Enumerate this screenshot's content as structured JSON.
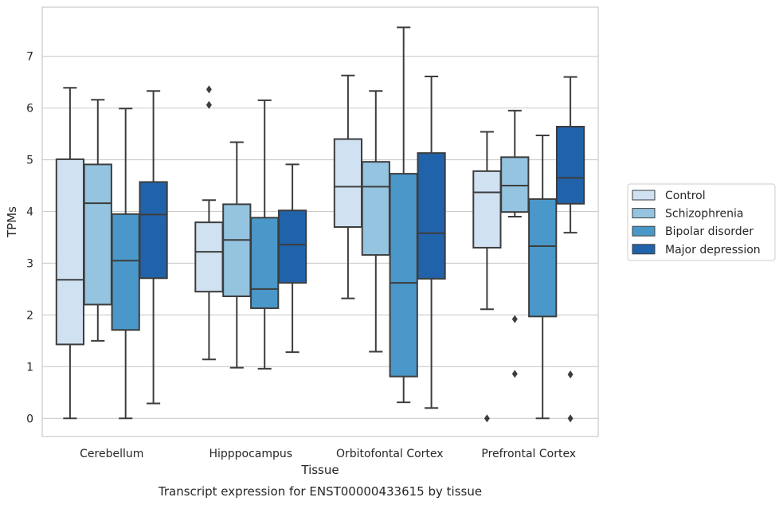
{
  "chart_data": {
    "type": "boxplot",
    "title": "Transcript expression for ENST00000433615 by tissue",
    "xlabel": "Tissue",
    "ylabel": "TPMs",
    "ylim": [
      -0.35,
      7.95
    ],
    "yticks": [
      0,
      1,
      2,
      3,
      4,
      5,
      6,
      7
    ],
    "grid": "horizontal",
    "legend_position": "right",
    "categories": [
      "Cerebellum",
      "Hipppocampus",
      "Orbitofontal Cortex",
      "Prefrontal Cortex"
    ],
    "series": [
      {
        "name": "Control",
        "color": "#d0e1f2",
        "boxes": [
          {
            "min": 0.0,
            "q1": 1.43,
            "median": 2.68,
            "q3": 5.01,
            "max": 6.39,
            "outliers": []
          },
          {
            "min": 1.14,
            "q1": 2.45,
            "median": 3.22,
            "q3": 3.79,
            "max": 4.22,
            "outliers": [
              6.06,
              6.36
            ]
          },
          {
            "min": 2.32,
            "q1": 3.7,
            "median": 4.48,
            "q3": 5.4,
            "max": 6.63,
            "outliers": []
          },
          {
            "min": 2.11,
            "q1": 3.3,
            "median": 4.37,
            "q3": 4.78,
            "max": 5.54,
            "outliers": [
              0.0
            ]
          }
        ]
      },
      {
        "name": "Schizophrenia",
        "color": "#94c4df",
        "boxes": [
          {
            "min": 1.5,
            "q1": 2.2,
            "median": 4.16,
            "q3": 4.91,
            "max": 6.16,
            "outliers": []
          },
          {
            "min": 0.98,
            "q1": 2.36,
            "median": 3.45,
            "q3": 4.14,
            "max": 5.34,
            "outliers": []
          },
          {
            "min": 1.29,
            "q1": 3.16,
            "median": 4.48,
            "q3": 4.96,
            "max": 6.33,
            "outliers": []
          },
          {
            "min": 3.9,
            "q1": 3.99,
            "median": 4.5,
            "q3": 5.05,
            "max": 5.95,
            "outliers": [
              1.92,
              0.86
            ]
          }
        ]
      },
      {
        "name": "Bipolar disorder",
        "color": "#4a98c9",
        "boxes": [
          {
            "min": 0.0,
            "q1": 1.71,
            "median": 3.05,
            "q3": 3.95,
            "max": 5.99,
            "outliers": []
          },
          {
            "min": 0.96,
            "q1": 2.13,
            "median": 2.5,
            "q3": 3.88,
            "max": 6.15,
            "outliers": []
          },
          {
            "min": 0.31,
            "q1": 0.81,
            "median": 2.62,
            "q3": 4.73,
            "max": 7.56,
            "outliers": []
          },
          {
            "min": 0.0,
            "q1": 1.97,
            "median": 3.33,
            "q3": 4.24,
            "max": 5.47,
            "outliers": []
          }
        ]
      },
      {
        "name": "Major depression",
        "color": "#2163aa",
        "boxes": [
          {
            "min": 0.29,
            "q1": 2.71,
            "median": 3.94,
            "q3": 4.57,
            "max": 6.33,
            "outliers": []
          },
          {
            "min": 1.28,
            "q1": 2.62,
            "median": 3.36,
            "q3": 4.02,
            "max": 4.91,
            "outliers": []
          },
          {
            "min": 0.2,
            "q1": 2.7,
            "median": 3.58,
            "q3": 5.13,
            "max": 6.61,
            "outliers": []
          },
          {
            "min": 3.59,
            "q1": 4.15,
            "median": 4.65,
            "q3": 5.64,
            "max": 6.6,
            "outliers": [
              0.85,
              0.0
            ]
          }
        ]
      }
    ]
  }
}
